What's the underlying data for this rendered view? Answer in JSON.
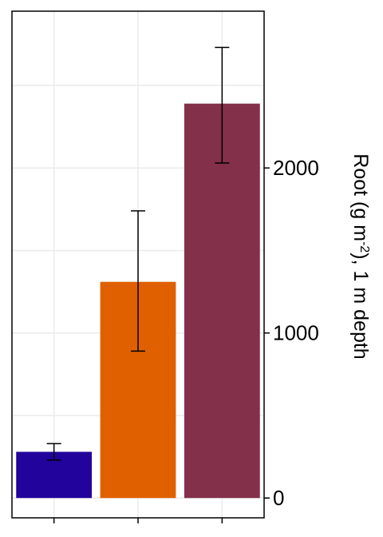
{
  "chart_data": {
    "type": "bar",
    "categories": [
      "",
      "",
      ""
    ],
    "values": [
      280,
      1310,
      2390
    ],
    "errors": [
      {
        "low": 230,
        "high": 330
      },
      {
        "low": 890,
        "high": 1740
      },
      {
        "low": 2030,
        "high": 2730
      }
    ],
    "colors": [
      "#22039b",
      "#e06000",
      "#83304a"
    ],
    "ylabel": "Root (g m^-2), 1 m depth",
    "ylabel_parts": {
      "before": "Root (g m",
      "sup": "-2",
      "after": "), 1 m depth"
    },
    "y_ticks": [
      0,
      1000,
      2000
    ],
    "ylim": [
      -120,
      2950
    ],
    "y_axis_position": "right",
    "grid": true
  }
}
